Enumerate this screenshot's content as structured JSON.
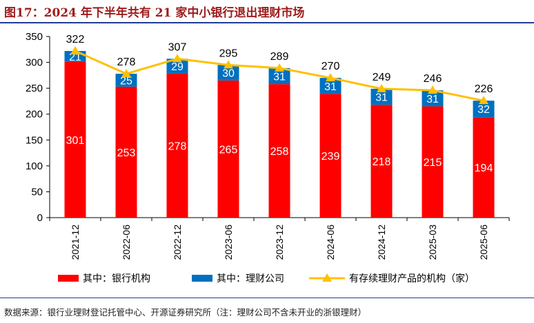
{
  "title": "图17：2024 年下半年共有 21 家中小银行退出理财市场",
  "source": "数据来源：银行业理财登记托管中心、开源证券研究所（注：理财公司不含未开业的浙银理财）",
  "colors": {
    "bank": "#ff0000",
    "wmc": "#0070c0",
    "total": "#ffc000",
    "axis": "#000000",
    "title": "#9e1b1b",
    "rule": "#1f3a93"
  },
  "chart_data": {
    "type": "bar",
    "stacked": true,
    "categories": [
      "2021-12",
      "2022-06",
      "2022-12",
      "2023-06",
      "2023-12",
      "2024-06",
      "2024-12",
      "2025-03",
      "2025-06"
    ],
    "series": [
      {
        "name": "其中：银行机构",
        "type": "bar",
        "values": [
          301,
          253,
          278,
          265,
          258,
          239,
          218,
          215,
          194
        ]
      },
      {
        "name": "其中：理财公司",
        "type": "bar",
        "values": [
          21,
          25,
          29,
          30,
          31,
          31,
          31,
          31,
          32
        ]
      },
      {
        "name": "有存续理财产品的机构（家）",
        "type": "line",
        "values": [
          322,
          278,
          307,
          295,
          289,
          270,
          249,
          246,
          226
        ]
      }
    ],
    "ylim": [
      0,
      350
    ],
    "yticks": [
      "0",
      "50",
      "100",
      "150",
      "200",
      "250",
      "300",
      "350"
    ],
    "legend": "bottom",
    "grid": false
  }
}
